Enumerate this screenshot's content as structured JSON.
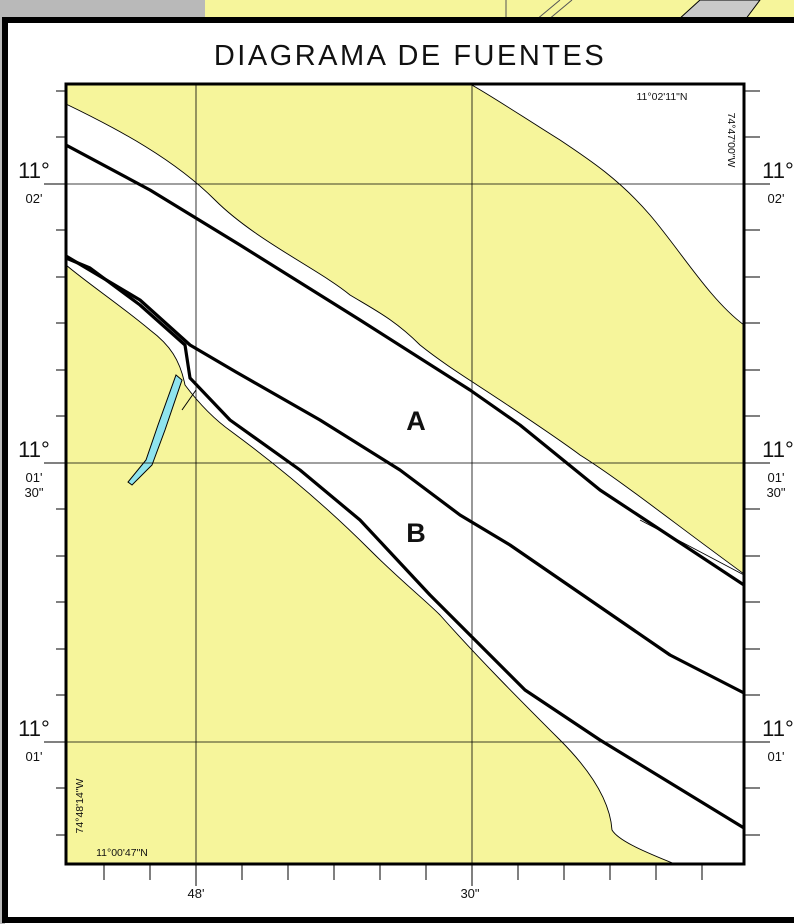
{
  "title": "DIAGRAMA DE FUENTES",
  "colors": {
    "land": "#f6f59b",
    "water": "#ffffff",
    "canal": "#8fe4ee",
    "background": "#b9b9b9",
    "frame": "#000000"
  },
  "corner_labels": {
    "top_right_lat": "11°02'11\"N",
    "top_right_lon": "74°47'00\"W",
    "bottom_left_lat": "11°00'47\"N",
    "bottom_left_lon": "74°48'14\"W"
  },
  "latitude_labels": [
    {
      "deg": "11°",
      "min": "02'",
      "sec": ""
    },
    {
      "deg": "11°",
      "min": "01'",
      "sec": "30\""
    },
    {
      "deg": "11°",
      "min": "01'",
      "sec": ""
    }
  ],
  "longitude_labels": [
    {
      "label": "48'"
    },
    {
      "label": "30\""
    }
  ],
  "source_areas": [
    {
      "letter": "A"
    },
    {
      "letter": "B"
    }
  ]
}
